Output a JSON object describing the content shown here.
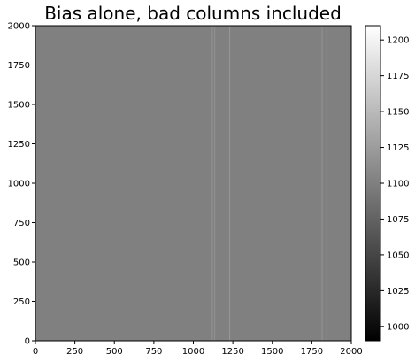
{
  "chart_data": {
    "type": "heatmap",
    "title": "Bias alone, bad columns included",
    "xlabel": "",
    "ylabel": "",
    "xlim": [
      0,
      2000
    ],
    "ylim": [
      0,
      2000
    ],
    "x_ticks": [
      0,
      250,
      500,
      750,
      1000,
      1250,
      1500,
      1750,
      2000
    ],
    "y_ticks": [
      0,
      250,
      500,
      750,
      1000,
      1250,
      1500,
      1750,
      2000
    ],
    "colormap": "gray",
    "colorbar": {
      "vmin": 990,
      "vmax": 1210,
      "ticks": [
        1000,
        1025,
        1050,
        1075,
        1100,
        1125,
        1150,
        1175,
        1200
      ]
    },
    "background_value": 1100,
    "bad_columns": [
      {
        "x": 1120,
        "value": 1118
      },
      {
        "x": 1135,
        "value": 1115
      },
      {
        "x": 1230,
        "value": 1120
      },
      {
        "x": 1815,
        "value": 1118
      },
      {
        "x": 1845,
        "value": 1122
      }
    ]
  }
}
